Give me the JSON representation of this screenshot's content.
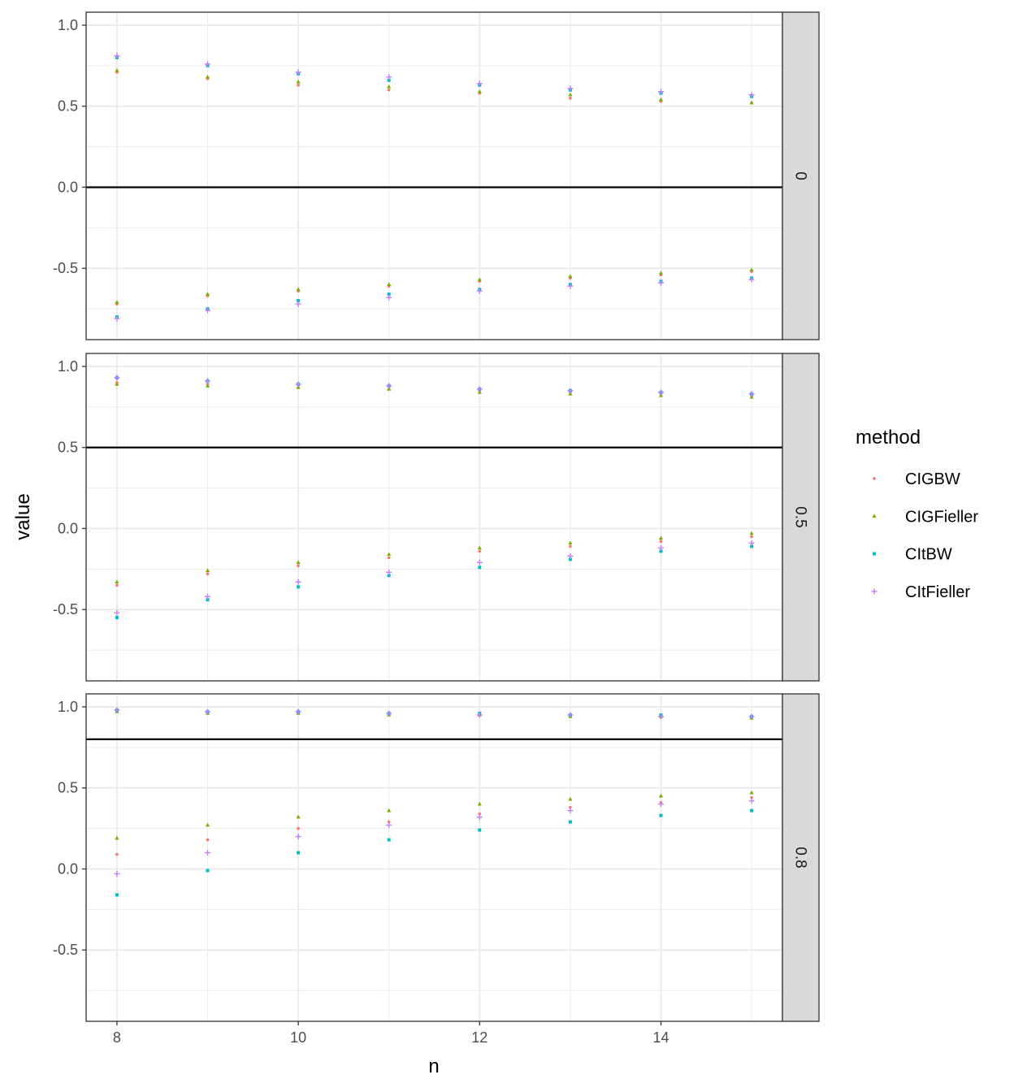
{
  "chart_data": {
    "type": "scatter",
    "facet_var_labels": [
      "0",
      "0.5",
      "0.8"
    ],
    "xlabel": "n",
    "ylabel": "value",
    "x_ticks": [
      "8",
      "10",
      "12",
      "14"
    ],
    "y_ticks": [
      "-0.5",
      "0.0",
      "0.5",
      "1.0"
    ],
    "xlim": [
      7.66,
      15.34
    ],
    "ylim": [
      -0.94,
      1.08
    ],
    "grid": true,
    "legend": {
      "title": "method",
      "position": "right"
    },
    "x": [
      8,
      9,
      10,
      11,
      12,
      13,
      14,
      15
    ],
    "colors": {
      "CIGBW": "#F8766D",
      "CIGFieller": "#7CAE00",
      "CItBW": "#00BFC4",
      "CItFieller": "#C77CFF"
    },
    "methods": [
      "CIGBW",
      "CIGFieller",
      "CItBW",
      "CItFieller"
    ],
    "panels": [
      {
        "facet": "0",
        "reference_line": 0.0,
        "series": [
          {
            "name": "CIGBW",
            "upper": [
              0.71,
              0.67,
              0.63,
              0.6,
              0.58,
              0.55,
              0.53,
              0.52
            ],
            "lower": [
              -0.72,
              -0.67,
              -0.64,
              -0.61,
              -0.58,
              -0.56,
              -0.54,
              -0.52
            ]
          },
          {
            "name": "CIGFieller",
            "upper": [
              0.72,
              0.68,
              0.65,
              0.62,
              0.59,
              0.57,
              0.54,
              0.52
            ],
            "lower": [
              -0.71,
              -0.66,
              -0.63,
              -0.6,
              -0.57,
              -0.55,
              -0.53,
              -0.51
            ]
          },
          {
            "name": "CItBW",
            "upper": [
              0.8,
              0.75,
              0.7,
              0.66,
              0.63,
              0.6,
              0.58,
              0.56
            ],
            "lower": [
              -0.8,
              -0.75,
              -0.7,
              -0.66,
              -0.63,
              -0.6,
              -0.58,
              -0.56
            ]
          },
          {
            "name": "CItFieller",
            "upper": [
              0.81,
              0.76,
              0.71,
              0.68,
              0.64,
              0.61,
              0.59,
              0.57
            ],
            "lower": [
              -0.81,
              -0.76,
              -0.72,
              -0.68,
              -0.64,
              -0.61,
              -0.59,
              -0.57
            ]
          }
        ]
      },
      {
        "facet": "0.5",
        "reference_line": 0.5,
        "series": [
          {
            "name": "CIGBW",
            "upper": [
              0.9,
              0.89,
              0.87,
              0.86,
              0.85,
              0.84,
              0.83,
              0.82
            ],
            "lower": [
              -0.35,
              -0.28,
              -0.23,
              -0.18,
              -0.14,
              -0.11,
              -0.08,
              -0.05
            ]
          },
          {
            "name": "CIGFieller",
            "upper": [
              0.89,
              0.88,
              0.87,
              0.86,
              0.84,
              0.83,
              0.82,
              0.81
            ],
            "lower": [
              -0.33,
              -0.26,
              -0.21,
              -0.16,
              -0.12,
              -0.09,
              -0.06,
              -0.03
            ]
          },
          {
            "name": "CItBW",
            "upper": [
              0.93,
              0.91,
              0.89,
              0.88,
              0.86,
              0.85,
              0.84,
              0.83
            ],
            "lower": [
              -0.55,
              -0.44,
              -0.36,
              -0.29,
              -0.24,
              -0.19,
              -0.14,
              -0.11
            ]
          },
          {
            "name": "CItFieller",
            "upper": [
              0.93,
              0.91,
              0.89,
              0.88,
              0.86,
              0.85,
              0.84,
              0.83
            ],
            "lower": [
              -0.52,
              -0.42,
              -0.33,
              -0.27,
              -0.21,
              -0.17,
              -0.12,
              -0.09
            ]
          }
        ]
      },
      {
        "facet": "0.8",
        "reference_line": 0.8,
        "series": [
          {
            "name": "CIGBW",
            "upper": [
              0.97,
              0.96,
              0.96,
              0.95,
              0.95,
              0.94,
              0.94,
              0.93
            ],
            "lower": [
              0.09,
              0.18,
              0.25,
              0.29,
              0.34,
              0.38,
              0.41,
              0.44
            ]
          },
          {
            "name": "CIGFieller",
            "upper": [
              0.97,
              0.96,
              0.96,
              0.95,
              0.95,
              0.94,
              0.94,
              0.93
            ],
            "lower": [
              0.19,
              0.27,
              0.32,
              0.36,
              0.4,
              0.43,
              0.45,
              0.47
            ]
          },
          {
            "name": "CItBW",
            "upper": [
              0.98,
              0.97,
              0.97,
              0.96,
              0.96,
              0.95,
              0.95,
              0.94
            ],
            "lower": [
              -0.16,
              -0.01,
              0.1,
              0.18,
              0.24,
              0.29,
              0.33,
              0.36
            ]
          },
          {
            "name": "CItFieller",
            "upper": [
              0.98,
              0.97,
              0.97,
              0.96,
              0.95,
              0.95,
              0.94,
              0.94
            ],
            "lower": [
              -0.03,
              0.1,
              0.2,
              0.27,
              0.32,
              0.36,
              0.4,
              0.42
            ]
          }
        ]
      }
    ]
  }
}
